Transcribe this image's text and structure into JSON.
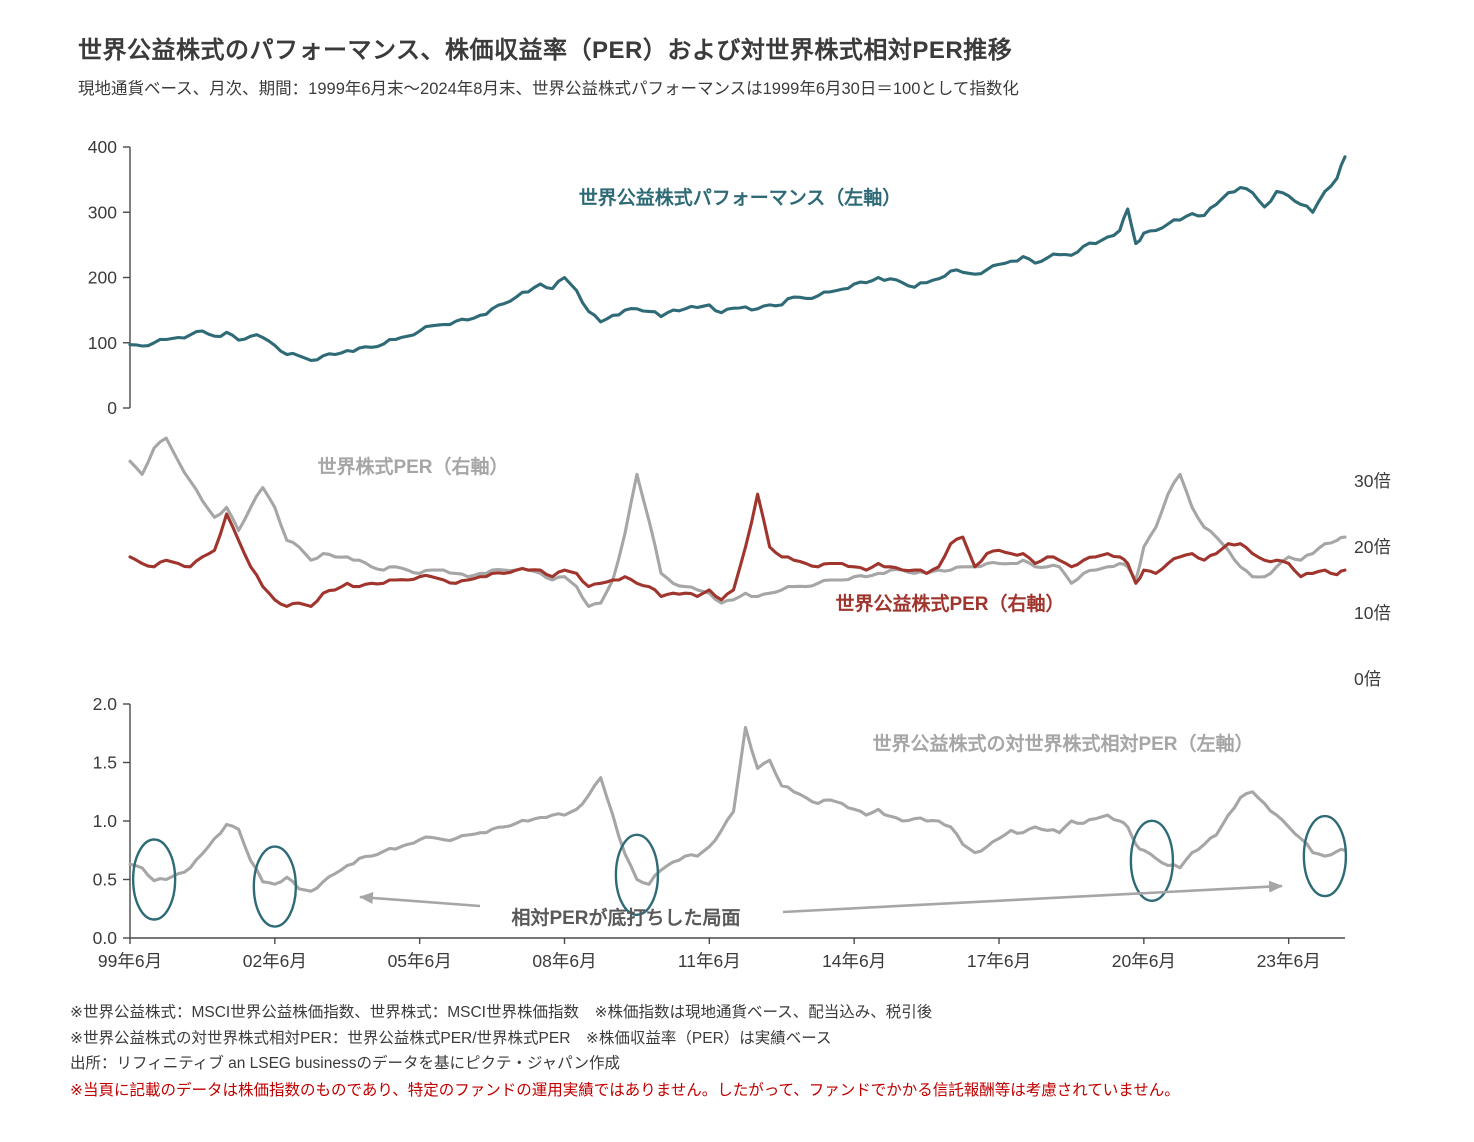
{
  "header": {
    "title": "世界公益株式のパフォーマンス、株価収益率（PER）および対世界株式相対PER推移",
    "subtitle": "現地通貨ベース、月次、期間：1999年6月末～2024年8月末、世界公益株式パフォーマンスは1999年6月30日＝100として指数化"
  },
  "labels": {
    "performance": "世界公益株式パフォーマンス（左軸）",
    "world_per": "世界株式PER（右軸）",
    "utility_per": "世界公益株式PER（右軸）",
    "relative_per": "世界公益株式の対世界株式相対PER（左軸）",
    "annotation": "相対PERが底打ちした局面"
  },
  "colors": {
    "performance": "#2E6B76",
    "world_per": "#A6A6A6",
    "utility_per": "#A0352E",
    "relative": "#A6A6A6",
    "circle": "#2E6B76",
    "arrow": "#A6A6A6",
    "axis": "#4a4a4a",
    "text": "#3B3B3B",
    "footnote_red": "#C00000"
  },
  "footnotes": {
    "line1": "※世界公益株式：MSCI世界公益株価指数、世界株式：MSCI世界株価指数　※株価指数は現地通貨ベース、配当込み、税引後",
    "line2": "※世界公益株式の対世界株式相対PER：世界公益株式PER/世界株式PER　※株価収益率（PER）は実績ベース",
    "line3": "出所：リフィニティブ an LSEG businessのデータを基にピクテ・ジャパン作成",
    "red_note": "※当頁に記載のデータは株価指数のものであり、特定のファンドの運用実績ではありません。したがって、ファンドでかかる信託報酬等は考慮されていません。"
  },
  "chart_data": {
    "type": "line",
    "title": "世界公益株式のパフォーマンス、株価収益率（PER）および対世界株式相対PER推移",
    "x_unit_note": "months since 1999-06 (0 = 1999年6月末, 302 = 2024年8月末), monthly data shown at quarterly resolution",
    "x_months": [
      0,
      3,
      6,
      9,
      12,
      15,
      18,
      21,
      24,
      27,
      30,
      33,
      36,
      39,
      42,
      45,
      48,
      51,
      54,
      57,
      60,
      63,
      66,
      69,
      72,
      75,
      78,
      81,
      84,
      87,
      90,
      93,
      96,
      99,
      102,
      105,
      108,
      111,
      114,
      117,
      120,
      123,
      126,
      129,
      132,
      135,
      138,
      141,
      144,
      147,
      150,
      153,
      156,
      159,
      162,
      165,
      168,
      171,
      174,
      177,
      180,
      183,
      186,
      189,
      192,
      195,
      198,
      201,
      204,
      207,
      210,
      213,
      216,
      219,
      222,
      225,
      228,
      231,
      234,
      237,
      240,
      243,
      246,
      248,
      250,
      252,
      255,
      258,
      261,
      264,
      267,
      270,
      273,
      276,
      279,
      282,
      285,
      288,
      291,
      294,
      297,
      300,
      302
    ],
    "x_axis": {
      "tick_months": [
        0,
        36,
        72,
        108,
        144,
        180,
        216,
        252,
        288
      ],
      "tick_labels": [
        "99年6月",
        "02年6月",
        "05年6月",
        "08年6月",
        "11年6月",
        "14年6月",
        "17年6月",
        "20年6月",
        "23年6月"
      ]
    },
    "panels": [
      {
        "id": "performance",
        "label": "世界公益株式パフォーマンス（左軸）",
        "axis_side": "left",
        "ylim": [
          0,
          400
        ],
        "ytick_values": [
          0,
          100,
          200,
          300,
          400
        ],
        "ytick_labels": [
          "0",
          "100",
          "200",
          "300",
          "400"
        ],
        "series": [
          {
            "name": "世界公益株式パフォーマンス",
            "color_key": "performance",
            "values": [
              97,
              95,
              100,
              105,
              108,
              112,
              118,
              110,
              116,
              104,
              110,
              108,
              96,
              82,
              80,
              73,
              80,
              82,
              88,
              92,
              93,
              98,
              105,
              110,
              118,
              126,
              128,
              133,
              135,
              142,
              152,
              160,
              170,
              178,
              190,
              183,
              200,
              180,
              148,
              132,
              142,
              150,
              152,
              148,
              140,
              150,
              152,
              154,
              158,
              146,
              153,
              155,
              152,
              158,
              158,
              170,
              168,
              172,
              178,
              182,
              190,
              192,
              200,
              198,
              192,
              185,
              192,
              198,
              210,
              208,
              205,
              212,
              220,
              225,
              232,
              222,
              230,
              235,
              234,
              248,
              252,
              262,
              272,
              305,
              252,
              268,
              272,
              282,
              288,
              298,
              295,
              312,
              330,
              338,
              330,
              308,
              332,
              325,
              312,
              300,
              332,
              352,
              385
            ]
          }
        ]
      },
      {
        "id": "per",
        "axis_side": "right",
        "ylim": [
          0,
          35
        ],
        "ytick_values": [
          0,
          10,
          20,
          30
        ],
        "ytick_labels": [
          "0倍",
          "10倍",
          "20倍",
          "30倍"
        ],
        "series": [
          {
            "name": "世界株式PER",
            "label": "世界株式PER（右軸）",
            "color_key": "world_per",
            "values": [
              33,
              31,
              35,
              36.5,
              33,
              30,
              27,
              24.5,
              26,
              22.5,
              26,
              29,
              26,
              21,
              20,
              18,
              19,
              18.5,
              18.5,
              18,
              17,
              16.5,
              17,
              16.5,
              16,
              16.5,
              16.5,
              16,
              15.5,
              16,
              16.5,
              16.5,
              16.5,
              16.5,
              16,
              15,
              15.5,
              14,
              11,
              11.5,
              15,
              22,
              31,
              24,
              16,
              14.5,
              14,
              13.5,
              13,
              11.5,
              12,
              13,
              12.5,
              13,
              13.5,
              14,
              14,
              14.5,
              15,
              15,
              15.5,
              15.5,
              16,
              16.5,
              16.5,
              16,
              16,
              16.5,
              16.5,
              17,
              17,
              17.5,
              17.5,
              17.5,
              18,
              17,
              17,
              17,
              14.5,
              16,
              16.5,
              17,
              17.5,
              17,
              15,
              20,
              23,
              28,
              31,
              26,
              23,
              21.5,
              19.5,
              17,
              15.5,
              15.5,
              17,
              18.5,
              18,
              19,
              20.5,
              21,
              21.5
            ]
          },
          {
            "name": "世界公益株式PER",
            "label": "世界公益株式PER（右軸）",
            "color_key": "utility_per",
            "values": [
              18.5,
              17.5,
              17,
              18,
              17.5,
              17,
              18.5,
              19.5,
              25,
              21,
              17,
              14,
              12,
              11,
              11.5,
              11,
              13,
              13.5,
              14.5,
              14,
              14.5,
              14.5,
              15,
              15,
              15.5,
              15.5,
              15,
              14.5,
              15,
              15.5,
              16,
              16,
              16.5,
              16.5,
              16.5,
              15.5,
              16.5,
              16,
              14,
              14.5,
              15,
              15.5,
              14.5,
              14,
              12.5,
              13,
              13,
              12.5,
              13.5,
              12,
              13.5,
              20,
              28,
              20,
              18.5,
              18,
              17.5,
              17,
              17.5,
              17.5,
              17,
              16.5,
              17.5,
              17,
              16.5,
              16.5,
              16,
              17,
              20.5,
              21.5,
              17,
              19,
              19.5,
              19,
              19,
              17.5,
              18.5,
              18,
              17,
              18,
              18.5,
              19,
              18.5,
              17.5,
              14.5,
              16.5,
              16,
              17.5,
              18.5,
              19,
              18,
              19,
              20.5,
              20.5,
              19,
              18,
              18,
              17.5,
              15.5,
              16,
              16.5,
              15.8,
              16.5
            ]
          }
        ]
      },
      {
        "id": "relative_per",
        "label": "世界公益株式の対世界株式相対PER（左軸）",
        "axis_side": "left",
        "ylim": [
          0,
          2
        ],
        "ytick_values": [
          0,
          0.5,
          1,
          1.5,
          2
        ],
        "ytick_labels": [
          "0.0",
          "0.5",
          "1.0",
          "1.5",
          "2.0"
        ],
        "series": [
          {
            "name": "世界公益株式の対世界株式相対PER",
            "color_key": "relative",
            "values": [
              0.63,
              0.6,
              0.49,
              0.5,
              0.55,
              0.6,
              0.72,
              0.85,
              0.97,
              0.93,
              0.66,
              0.48,
              0.46,
              0.52,
              0.42,
              0.4,
              0.48,
              0.55,
              0.62,
              0.68,
              0.7,
              0.74,
              0.76,
              0.8,
              0.84,
              0.86,
              0.84,
              0.85,
              0.88,
              0.9,
              0.93,
              0.95,
              0.98,
              1,
              1.03,
              1.05,
              1.05,
              1.1,
              1.22,
              1.37,
              1.05,
              0.72,
              0.5,
              0.46,
              0.58,
              0.65,
              0.7,
              0.7,
              0.78,
              0.92,
              1.08,
              1.8,
              1.45,
              1.52,
              1.3,
              1.25,
              1.2,
              1.15,
              1.18,
              1.15,
              1.1,
              1.05,
              1.1,
              1.04,
              1,
              1.02,
              1,
              1,
              0.95,
              0.8,
              0.73,
              0.78,
              0.85,
              0.92,
              0.9,
              0.95,
              0.92,
              0.9,
              1,
              0.98,
              1.02,
              1.05,
              1,
              0.95,
              0.8,
              0.75,
              0.68,
              0.62,
              0.6,
              0.73,
              0.8,
              0.88,
              1.05,
              1.2,
              1.25,
              1.15,
              1.05,
              0.95,
              0.85,
              0.73,
              0.7,
              0.74,
              0.75
            ]
          }
        ]
      }
    ],
    "annotations": {
      "bottom_note": "相対PERが底打ちした局面",
      "trough_circles": [
        {
          "month": 6,
          "value": 0.5
        },
        {
          "month": 36,
          "value": 0.44
        },
        {
          "month": 126,
          "value": 0.54
        },
        {
          "month": 254,
          "value": 0.66
        },
        {
          "month": 297,
          "value": 0.7
        }
      ]
    }
  }
}
